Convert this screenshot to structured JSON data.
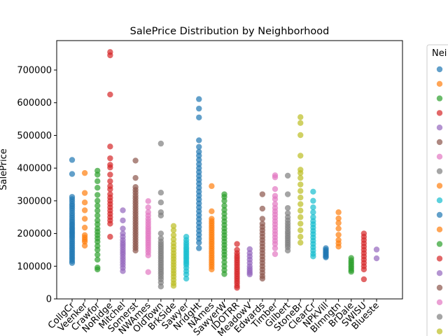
{
  "chart_data": {
    "type": "scatter",
    "title": "SalePrice Distribution by Neighborhood",
    "xlabel": "",
    "ylabel": "SalePrice",
    "ylim": [
      0,
      790000
    ],
    "yticks": [
      0,
      100000,
      200000,
      300000,
      400000,
      500000,
      600000,
      700000
    ],
    "legend": {
      "title": "Nei",
      "placement": "right-outside",
      "visible_entries": 19
    },
    "grid": false,
    "series": [
      {
        "category": "CollgCr",
        "color": "#1f77b4",
        "values": [
          425000,
          382000,
          312000,
          305000,
          298000,
          290000,
          284000,
          277000,
          270000,
          262000,
          255000,
          248000,
          241000,
          235000,
          229000,
          224000,
          218000,
          213000,
          208000,
          203000,
          198000,
          193000,
          188000,
          182000,
          176000,
          170000,
          164000,
          158000,
          152000,
          146000,
          140000,
          134000,
          128000,
          122000,
          116000,
          110000
        ]
      },
      {
        "category": "Veenker",
        "color": "#ff7f0e",
        "values": [
          385000,
          324000,
          295000,
          271000,
          245000,
          218000,
          195000,
          188000,
          181000,
          175000,
          163000
        ]
      },
      {
        "category": "Crawfor",
        "color": "#2ca02c",
        "values": [
          392000,
          380000,
          360000,
          340000,
          318000,
          300000,
          285000,
          270000,
          255000,
          240000,
          228000,
          215000,
          205000,
          195000,
          185000,
          175000,
          162000,
          150000,
          135000,
          120000,
          96000,
          90000
        ]
      },
      {
        "category": "NoRidge",
        "color": "#d62728",
        "values": [
          755000,
          745000,
          625000,
          466000,
          430000,
          410000,
          402000,
          380000,
          360000,
          345000,
          335000,
          320000,
          310000,
          300000,
          290000,
          280000,
          270000,
          260000,
          250000,
          240000,
          230000,
          190000
        ]
      },
      {
        "category": "Mitchel",
        "color": "#9467bd",
        "values": [
          271000,
          240000,
          215000,
          200000,
          190000,
          180000,
          172000,
          165000,
          158000,
          150000,
          143000,
          136000,
          128000,
          120000,
          112000,
          104000,
          95000,
          85000
        ]
      },
      {
        "category": "Somerst",
        "color": "#8c564b",
        "values": [
          423000,
          370000,
          342000,
          333000,
          325000,
          316000,
          308000,
          300000,
          292000,
          284000,
          276000,
          268000,
          260000,
          252000,
          244000,
          236000,
          228000,
          220000,
          212000,
          204000,
          196000,
          188000,
          180000,
          172000,
          164000,
          156000,
          148000
        ]
      },
      {
        "category": "NWAmes",
        "color": "#e377c2",
        "values": [
          299000,
          280000,
          265000,
          255000,
          245000,
          237000,
          229000,
          221000,
          214000,
          207000,
          200000,
          193000,
          186000,
          179000,
          172000,
          165000,
          158000,
          150000,
          142000,
          133000,
          82000
        ]
      },
      {
        "category": "OldTown",
        "color": "#7f7f7f",
        "values": [
          475000,
          325000,
          295000,
          265000,
          255000,
          200000,
          185000,
          175000,
          167000,
          160000,
          153000,
          146000,
          139000,
          132000,
          125000,
          118000,
          111000,
          104000,
          97000,
          90000,
          83000,
          76000,
          68000,
          60000,
          50000,
          38000
        ]
      },
      {
        "category": "BrkSide",
        "color": "#bcbd22",
        "values": [
          223000,
          210000,
          195000,
          182000,
          170000,
          160000,
          150000,
          140000,
          131000,
          122000,
          113000,
          104000,
          95000,
          86000,
          77000,
          68000,
          58000,
          48000,
          40000
        ]
      },
      {
        "category": "Sawyer",
        "color": "#17becf",
        "values": [
          190000,
          180000,
          172000,
          165000,
          158000,
          152000,
          146000,
          140000,
          134000,
          128000,
          122000,
          116000,
          110000,
          104000,
          95000,
          85000,
          75000,
          62000
        ]
      },
      {
        "category": "NridgHt",
        "color": "#1f77b4",
        "values": [
          611000,
          582000,
          555000,
          485000,
          465000,
          450000,
          438000,
          425000,
          412000,
          400000,
          388000,
          376000,
          364000,
          352000,
          340000,
          328000,
          316000,
          304000,
          292000,
          280000,
          268000,
          256000,
          244000,
          232000,
          220000,
          208000,
          196000,
          184000,
          172000,
          155000
        ]
      },
      {
        "category": "NAmes",
        "color": "#ff7f0e",
        "values": [
          345000,
          268000,
          245000,
          238000,
          231000,
          224000,
          217000,
          210000,
          203000,
          196000,
          189000,
          182000,
          175000,
          168000,
          161000,
          154000,
          147000,
          140000,
          133000,
          126000,
          119000,
          112000,
          105000,
          98000,
          90000
        ]
      },
      {
        "category": "SawyerW",
        "color": "#2ca02c",
        "values": [
          320000,
          312000,
          300000,
          285000,
          272000,
          260000,
          248000,
          237000,
          226000,
          215000,
          205000,
          195000,
          185000,
          175000,
          165000,
          155000,
          145000,
          135000,
          125000,
          112000,
          100000,
          88000,
          76000
        ]
      },
      {
        "category": "IDOTRR",
        "color": "#d62728",
        "values": [
          168000,
          150000,
          140000,
          132000,
          125000,
          118000,
          111000,
          104000,
          97000,
          90000,
          83000,
          76000,
          69000,
          62000,
          55000,
          48000,
          40000,
          34000
        ]
      },
      {
        "category": "MeadowV",
        "color": "#9467bd",
        "values": [
          152000,
          140000,
          130000,
          120000,
          110000,
          100000,
          92000,
          86000,
          80000,
          75000
        ]
      },
      {
        "category": "Edwards",
        "color": "#8c564b",
        "values": [
          320000,
          276000,
          245000,
          230000,
          220000,
          210000,
          200000,
          190000,
          180000,
          170000,
          160000,
          150000,
          140000,
          130000,
          120000,
          110000,
          100000,
          90000,
          80000,
          70000,
          62000
        ]
      },
      {
        "category": "Timber",
        "color": "#e377c2",
        "values": [
          378000,
          372000,
          336000,
          315000,
          305000,
          290000,
          278000,
          268000,
          258000,
          248000,
          238000,
          228000,
          218000,
          208000,
          198000,
          188000,
          178000,
          168000,
          155000,
          137000
        ]
      },
      {
        "category": "Gilbert",
        "color": "#7f7f7f",
        "values": [
          377000,
          320000,
          278000,
          262000,
          250000,
          240000,
          231000,
          223000,
          215000,
          207000,
          200000,
          193000,
          186000,
          179000,
          172000,
          165000,
          158000,
          148000
        ]
      },
      {
        "category": "StoneBr",
        "color": "#bcbd22",
        "values": [
          556000,
          538000,
          501000,
          438000,
          395000,
          385000,
          370000,
          350000,
          330000,
          310000,
          290000,
          270000,
          250000,
          230000,
          210000,
          190000,
          172000
        ]
      },
      {
        "category": "ClearCr",
        "color": "#17becf",
        "values": [
          328000,
          300000,
          280000,
          265000,
          250000,
          238000,
          228000,
          218000,
          208000,
          198000,
          188000,
          178000,
          168000,
          158000,
          148000,
          138000,
          130000
        ]
      },
      {
        "category": "NPkVill",
        "color": "#1f77b4",
        "values": [
          155000,
          150000,
          146000,
          142000,
          138000,
          134000,
          130000,
          127000
        ]
      },
      {
        "category": "Blmngtn",
        "color": "#ff7f0e",
        "values": [
          265000,
          246000,
          232000,
          215000,
          196000,
          180000,
          170000,
          160000
        ]
      },
      {
        "category": "BrDale",
        "color": "#2ca02c",
        "values": [
          125000,
          118000,
          112000,
          106000,
          100000,
          94000,
          88000,
          83000
        ]
      },
      {
        "category": "SWISU",
        "color": "#d62728",
        "values": [
          200000,
          190000,
          180000,
          170000,
          160000,
          150000,
          140000,
          130000,
          120000,
          110000,
          100000,
          90000,
          60000
        ]
      },
      {
        "category": "Blueste",
        "color": "#9467bd",
        "values": [
          151000,
          124000
        ]
      }
    ],
    "legend_marker_colors": [
      "#1f77b4",
      "#ff7f0e",
      "#2ca02c",
      "#d62728",
      "#9467bd",
      "#8c564b",
      "#e377c2",
      "#7f7f7f",
      "#ff7f0e",
      "#17becf",
      "#1f77b4",
      "#ff7f0e",
      "#2ca02c",
      "#d62728",
      "#9467bd",
      "#8c564b",
      "#e377c2",
      "#7f7f7f",
      "#bcbd22"
    ]
  }
}
